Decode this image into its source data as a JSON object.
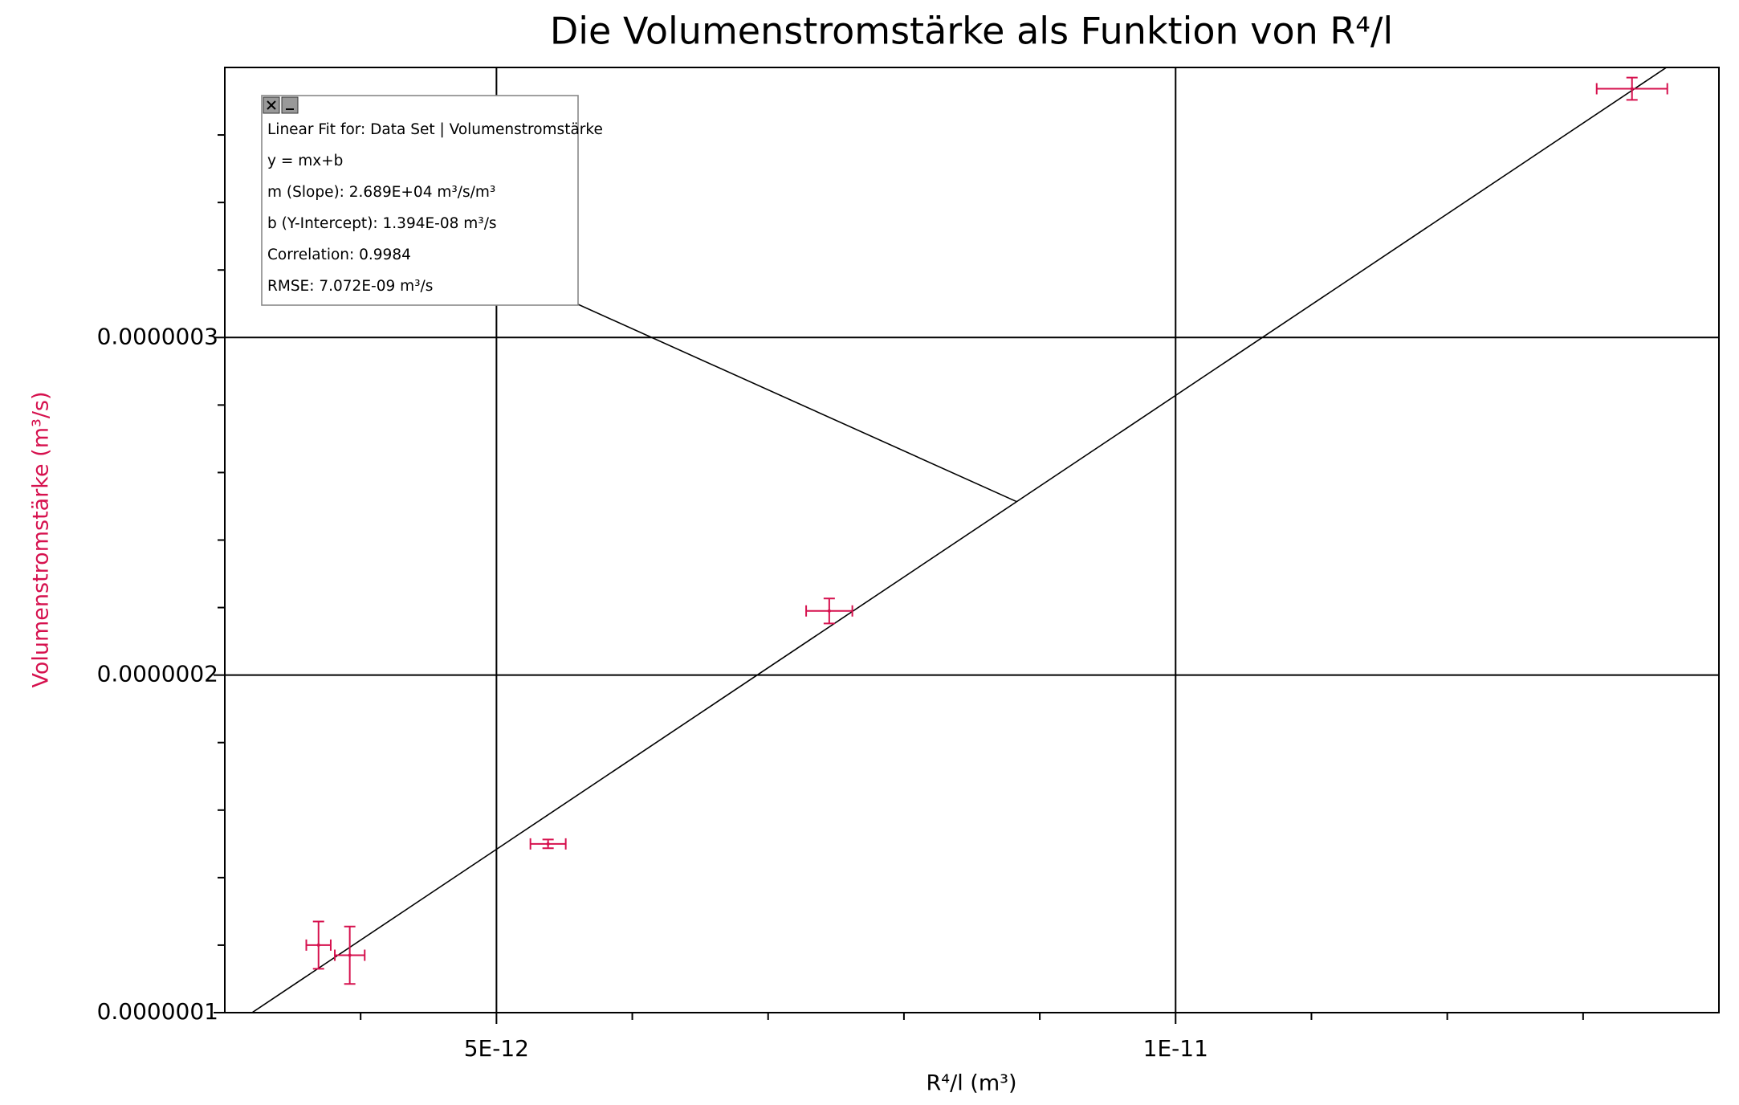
{
  "chart_data": {
    "type": "scatter",
    "title": "Die Volumenstromstärke als Funktion von R⁴/l",
    "xlabel": "R⁴/l (m³)",
    "ylabel": "Volumenstromstärke (m³/s)",
    "x": [
      3.69e-12,
      3.92e-12,
      5.38e-12,
      7.45e-12,
      1.336e-11
    ],
    "xerr": [
      9e-14,
      1.1e-13,
      1.3e-13,
      1.7e-13,
      2.6e-13
    ],
    "values": [
      1.2e-07,
      1.17e-07,
      1.5e-07,
      2.19e-07,
      3.737e-07
    ],
    "yerr": [
      7e-09,
      8.5e-09,
      1.3e-09,
      3.7e-09,
      3.3e-09
    ],
    "color": "#d6114e",
    "xlim": [
      3e-12,
      1.4e-11
    ],
    "ylim": [
      1e-07,
      3.8e-07
    ],
    "xticks": [
      {
        "value": 5e-12,
        "label": "5E-12"
      },
      {
        "value": 1e-11,
        "label": "1E-11"
      }
    ],
    "yticks": [
      {
        "value": 1e-07,
        "label": "0.0000001"
      },
      {
        "value": 2e-07,
        "label": "0.0000002"
      },
      {
        "value": 3e-07,
        "label": "0.0000003"
      }
    ],
    "xminorticks": [
      4e-12,
      6e-12,
      7e-12,
      8e-12,
      9e-12,
      1.1e-11,
      1.2e-11,
      1.3e-11
    ],
    "yminorticks": [
      1.2e-07,
      1.4e-07,
      1.6e-07,
      1.8e-07,
      2.2e-07,
      2.4e-07,
      2.6e-07,
      2.8e-07,
      3.2e-07,
      3.4e-07,
      3.6e-07
    ],
    "grid": true,
    "fit": {
      "slope": 26890,
      "intercept": 1.394e-08
    },
    "annotation": [
      "Linear Fit for: Data Set | Volumenstromstärke",
      "y = mx+b",
      "m (Slope): 2.689E+04 m³/s/m³",
      "b (Y-Intercept): 1.394E-08 m³/s",
      "Correlation: 0.9984",
      "RMSE: 7.072E-09 m³/s"
    ]
  }
}
